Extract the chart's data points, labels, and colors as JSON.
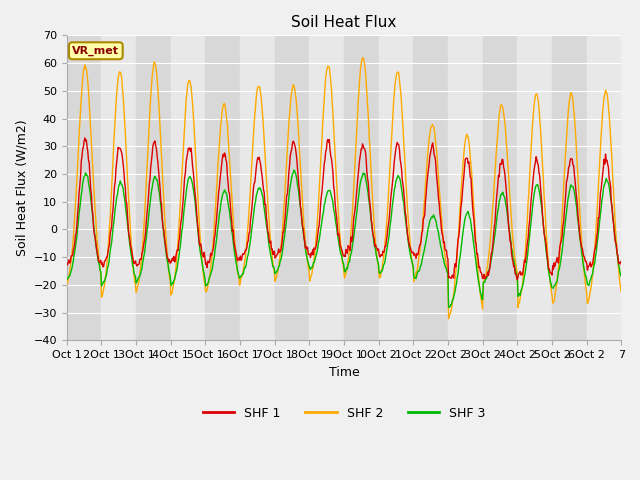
{
  "title": "Soil Heat Flux",
  "ylabel": "Soil Heat Flux (W/m2)",
  "xlabel": "Time",
  "ylim": [
    -40,
    70
  ],
  "yticks": [
    -40,
    -30,
    -20,
    -10,
    0,
    10,
    20,
    30,
    40,
    50,
    60,
    70
  ],
  "annotation_label": "VR_met",
  "legend_labels": [
    "SHF 1",
    "SHF 2",
    "SHF 3"
  ],
  "line_colors": [
    "#dd0000",
    "#ffaa00",
    "#00bb00"
  ],
  "fig_bg": "#f0f0f0",
  "plot_bg_light": "#e8e8e8",
  "plot_bg_dark": "#d8d8d8",
  "n_days": 16,
  "xtick_labels": [
    "Oct 1",
    "2Oct 1",
    "3Oct 1",
    "4Oct 1",
    "5Oct 1",
    "6Oct 1",
    "7Oct 1",
    "8Oct 1",
    "9Oct 1",
    "0Oct 2",
    "1Oct 2",
    "2Oct 2",
    "3Oct 2",
    "4Oct 2",
    "5Oct 2",
    "6Oct 2",
    "7"
  ],
  "shf1_peaks": [
    33,
    30,
    31,
    30,
    27,
    26,
    31,
    32,
    31,
    31,
    30,
    26,
    25,
    25,
    26,
    26
  ],
  "shf1_nights": [
    -13,
    -13,
    -13,
    -12,
    -13,
    -10,
    -10,
    -10,
    -9,
    -10,
    -10,
    -18,
    -18,
    -17,
    -13,
    -14
  ],
  "shf2_peaks": [
    59,
    57,
    60,
    54,
    45,
    52,
    52,
    59,
    62,
    57,
    38,
    34,
    45,
    49,
    49,
    50
  ],
  "shf2_nights": [
    -22,
    -27,
    -25,
    -26,
    -25,
    -21,
    -21,
    -21,
    -20,
    -20,
    -20,
    -34,
    -21,
    -30,
    -29,
    -29
  ],
  "shf3_peaks": [
    20,
    17,
    19,
    19,
    14,
    15,
    21,
    14,
    20,
    19,
    5,
    6,
    13,
    16,
    16,
    18
  ],
  "shf3_nights": [
    -19,
    -21,
    -20,
    -21,
    -21,
    -18,
    -17,
    -15,
    -16,
    -17,
    -18,
    -29,
    -20,
    -25,
    -22,
    -21
  ],
  "shf1_peak_sharpness": 18,
  "shf2_peak_sharpness": 12,
  "shf3_peak_sharpness": 12,
  "peak_time": 0.54
}
